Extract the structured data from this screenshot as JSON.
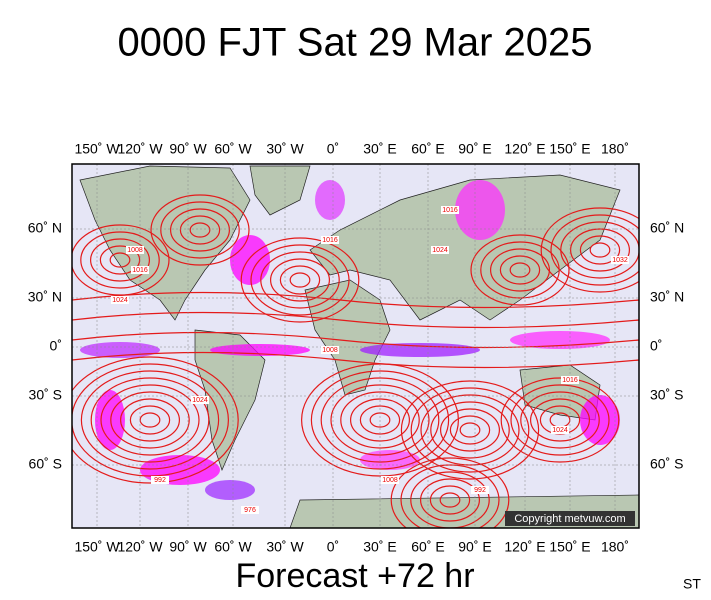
{
  "header": {
    "title": "0000 FJT Sat 29 Mar 2025"
  },
  "map": {
    "lon_labels": [
      "150˚ W",
      "120˚ W",
      "90˚ W",
      "60˚ W",
      "30˚ W",
      "0˚",
      "30˚ E",
      "60˚ E",
      "90˚ E",
      "120˚ E",
      "150˚ E",
      "180˚"
    ],
    "lat_labels": [
      "60˚ N",
      "30˚ N",
      "0˚",
      "30˚ S",
      "60˚ S"
    ],
    "isobar_labels": [
      "1008",
      "1016",
      "1024",
      "1016",
      "1008",
      "1024",
      "1016",
      "1032",
      "1024",
      "992",
      "976",
      "1008",
      "1016",
      "1024",
      "992"
    ],
    "copyright": "Copyright metvuw.com"
  },
  "footer": {
    "forecast": "Forecast +72 hr",
    "corner": "ST"
  }
}
